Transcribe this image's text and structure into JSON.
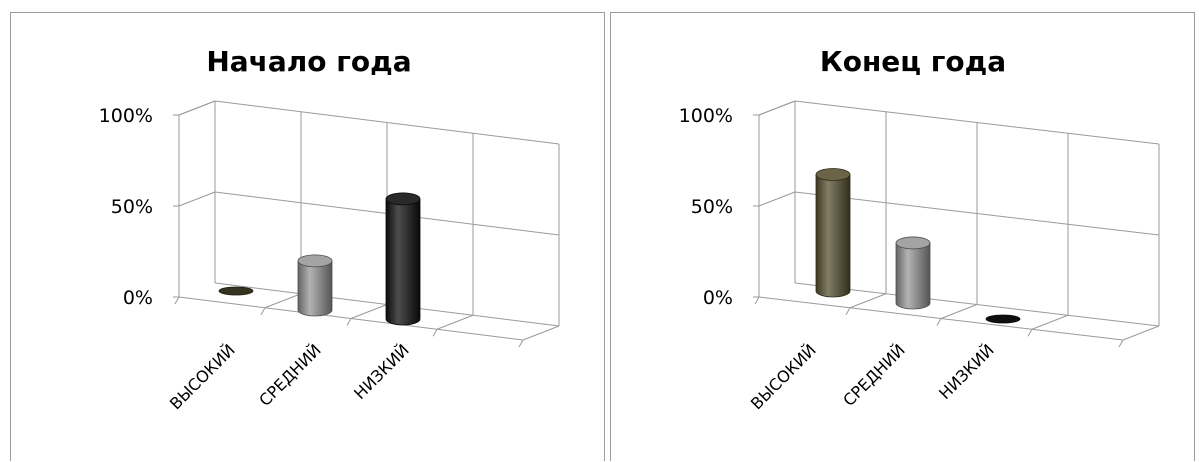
{
  "chart_data": [
    {
      "type": "bar",
      "style": "3d-cylinder",
      "title": "Начало года",
      "categories": [
        "ВЫСОКИЙ",
        "СРЕДНИЙ",
        "НИЗКИЙ"
      ],
      "values": [
        0,
        27,
        66
      ],
      "bar_colors": [
        "#3b3a24",
        "#9a9a9a",
        "#111111"
      ],
      "y_ticks": [
        "0%",
        "50%",
        "100%"
      ],
      "ylim": [
        0,
        100
      ],
      "y_unit": "%",
      "grid": true,
      "legend": "none"
    },
    {
      "type": "bar",
      "style": "3d-cylinder",
      "title": "Конец года",
      "categories": [
        "ВЫСОКИЙ",
        "СРЕДНИЙ",
        "НИЗКИЙ"
      ],
      "values": [
        64,
        33,
        0
      ],
      "bar_colors": [
        "#5a5331",
        "#9a9a9a",
        "#111111"
      ],
      "y_ticks": [
        "0%",
        "50%",
        "100%"
      ],
      "ylim": [
        0,
        100
      ],
      "y_unit": "%",
      "grid": true,
      "legend": "none"
    }
  ]
}
